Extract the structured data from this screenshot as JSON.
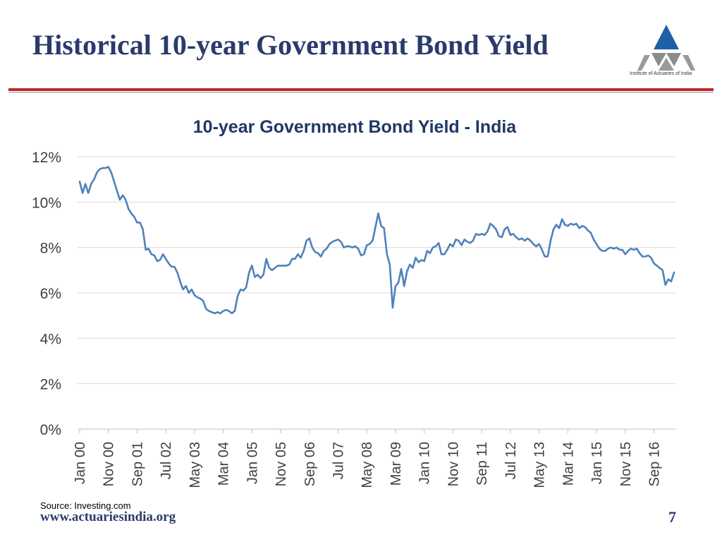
{
  "slide": {
    "title": "Historical 10-year Government Bond Yield",
    "logo_caption": "Institute of Actuaries of India",
    "source": "Source: Investing.com",
    "footer_url": "www.actuariesindia.org",
    "page_number": "7"
  },
  "colors": {
    "title": "#2b3a6b",
    "rule": "#c0262c",
    "line": "#4f81bd",
    "logo_blue": "#1f5fa5",
    "logo_grey": "#8c8c8c"
  },
  "icons": {
    "logo": "institute-logo-triangle"
  },
  "chart_data": {
    "type": "line",
    "title": "10-year Government Bond Yield - India",
    "xlabel": "",
    "ylabel": "",
    "ylim": [
      0,
      12
    ],
    "yticks": [
      "0%",
      "2%",
      "4%",
      "6%",
      "8%",
      "10%",
      "12%"
    ],
    "grid": true,
    "legend": "none",
    "x_tick_labels": [
      "Jan 00",
      "Nov 00",
      "Sep 01",
      "Jul 02",
      "May 03",
      "Mar 04",
      "Jan 05",
      "Nov 05",
      "Sep 06",
      "Jul 07",
      "May 08",
      "Mar 09",
      "Jan 10",
      "Nov 10",
      "Sep 11",
      "Jul 12",
      "May 13",
      "Mar 14",
      "Jan 15",
      "Nov 15",
      "Sep 16"
    ],
    "x_start": "Jan 2000",
    "x_frequency": "monthly",
    "series": [
      {
        "values": [
          10.9,
          10.4,
          10.8,
          10.4,
          10.8,
          11.0,
          11.3,
          11.45,
          11.5,
          11.5,
          11.55,
          11.3,
          10.9,
          10.5,
          10.1,
          10.3,
          10.1,
          9.7,
          9.5,
          9.35,
          9.1,
          9.1,
          8.8,
          7.9,
          7.95,
          7.7,
          7.65,
          7.4,
          7.45,
          7.7,
          7.5,
          7.3,
          7.15,
          7.15,
          6.9,
          6.5,
          6.15,
          6.3,
          6.0,
          6.15,
          5.9,
          5.8,
          5.75,
          5.65,
          5.3,
          5.2,
          5.15,
          5.1,
          5.15,
          5.1,
          5.2,
          5.25,
          5.2,
          5.1,
          5.2,
          5.85,
          6.15,
          6.1,
          6.25,
          6.9,
          7.2,
          6.7,
          6.8,
          6.65,
          6.8,
          7.5,
          7.1,
          7.0,
          7.1,
          7.2,
          7.2,
          7.2,
          7.2,
          7.25,
          7.5,
          7.5,
          7.7,
          7.55,
          7.85,
          8.3,
          8.4,
          8.0,
          7.8,
          7.75,
          7.6,
          7.85,
          7.95,
          8.15,
          8.25,
          8.3,
          8.35,
          8.25,
          8.0,
          8.05,
          8.05,
          8.0,
          8.05,
          7.95,
          7.65,
          7.7,
          8.1,
          8.15,
          8.3,
          8.9,
          9.5,
          8.95,
          8.85,
          7.7,
          7.25,
          5.35,
          6.3,
          6.45,
          7.05,
          6.3,
          6.95,
          7.25,
          7.1,
          7.55,
          7.35,
          7.45,
          7.4,
          7.85,
          7.75,
          8.0,
          8.05,
          8.2,
          7.7,
          7.7,
          7.9,
          8.15,
          8.05,
          8.35,
          8.3,
          8.1,
          8.35,
          8.25,
          8.2,
          8.3,
          8.6,
          8.55,
          8.6,
          8.55,
          8.7,
          9.05,
          8.95,
          8.8,
          8.5,
          8.45,
          8.8,
          8.9,
          8.55,
          8.6,
          8.45,
          8.35,
          8.4,
          8.3,
          8.4,
          8.3,
          8.15,
          8.05,
          8.15,
          7.9,
          7.6,
          7.6,
          8.3,
          8.8,
          9.0,
          8.85,
          9.25,
          9.0,
          8.95,
          9.05,
          9.0,
          9.05,
          8.85,
          8.95,
          8.9,
          8.75,
          8.65,
          8.35,
          8.15,
          7.95,
          7.85,
          7.85,
          7.95,
          8.0,
          7.95,
          8.0,
          7.9,
          7.9,
          7.7,
          7.85,
          7.95,
          7.9,
          7.95,
          7.75,
          7.6,
          7.6,
          7.65,
          7.55,
          7.3,
          7.2,
          7.1,
          7.0,
          6.35,
          6.6,
          6.5,
          6.9
        ]
      }
    ]
  }
}
